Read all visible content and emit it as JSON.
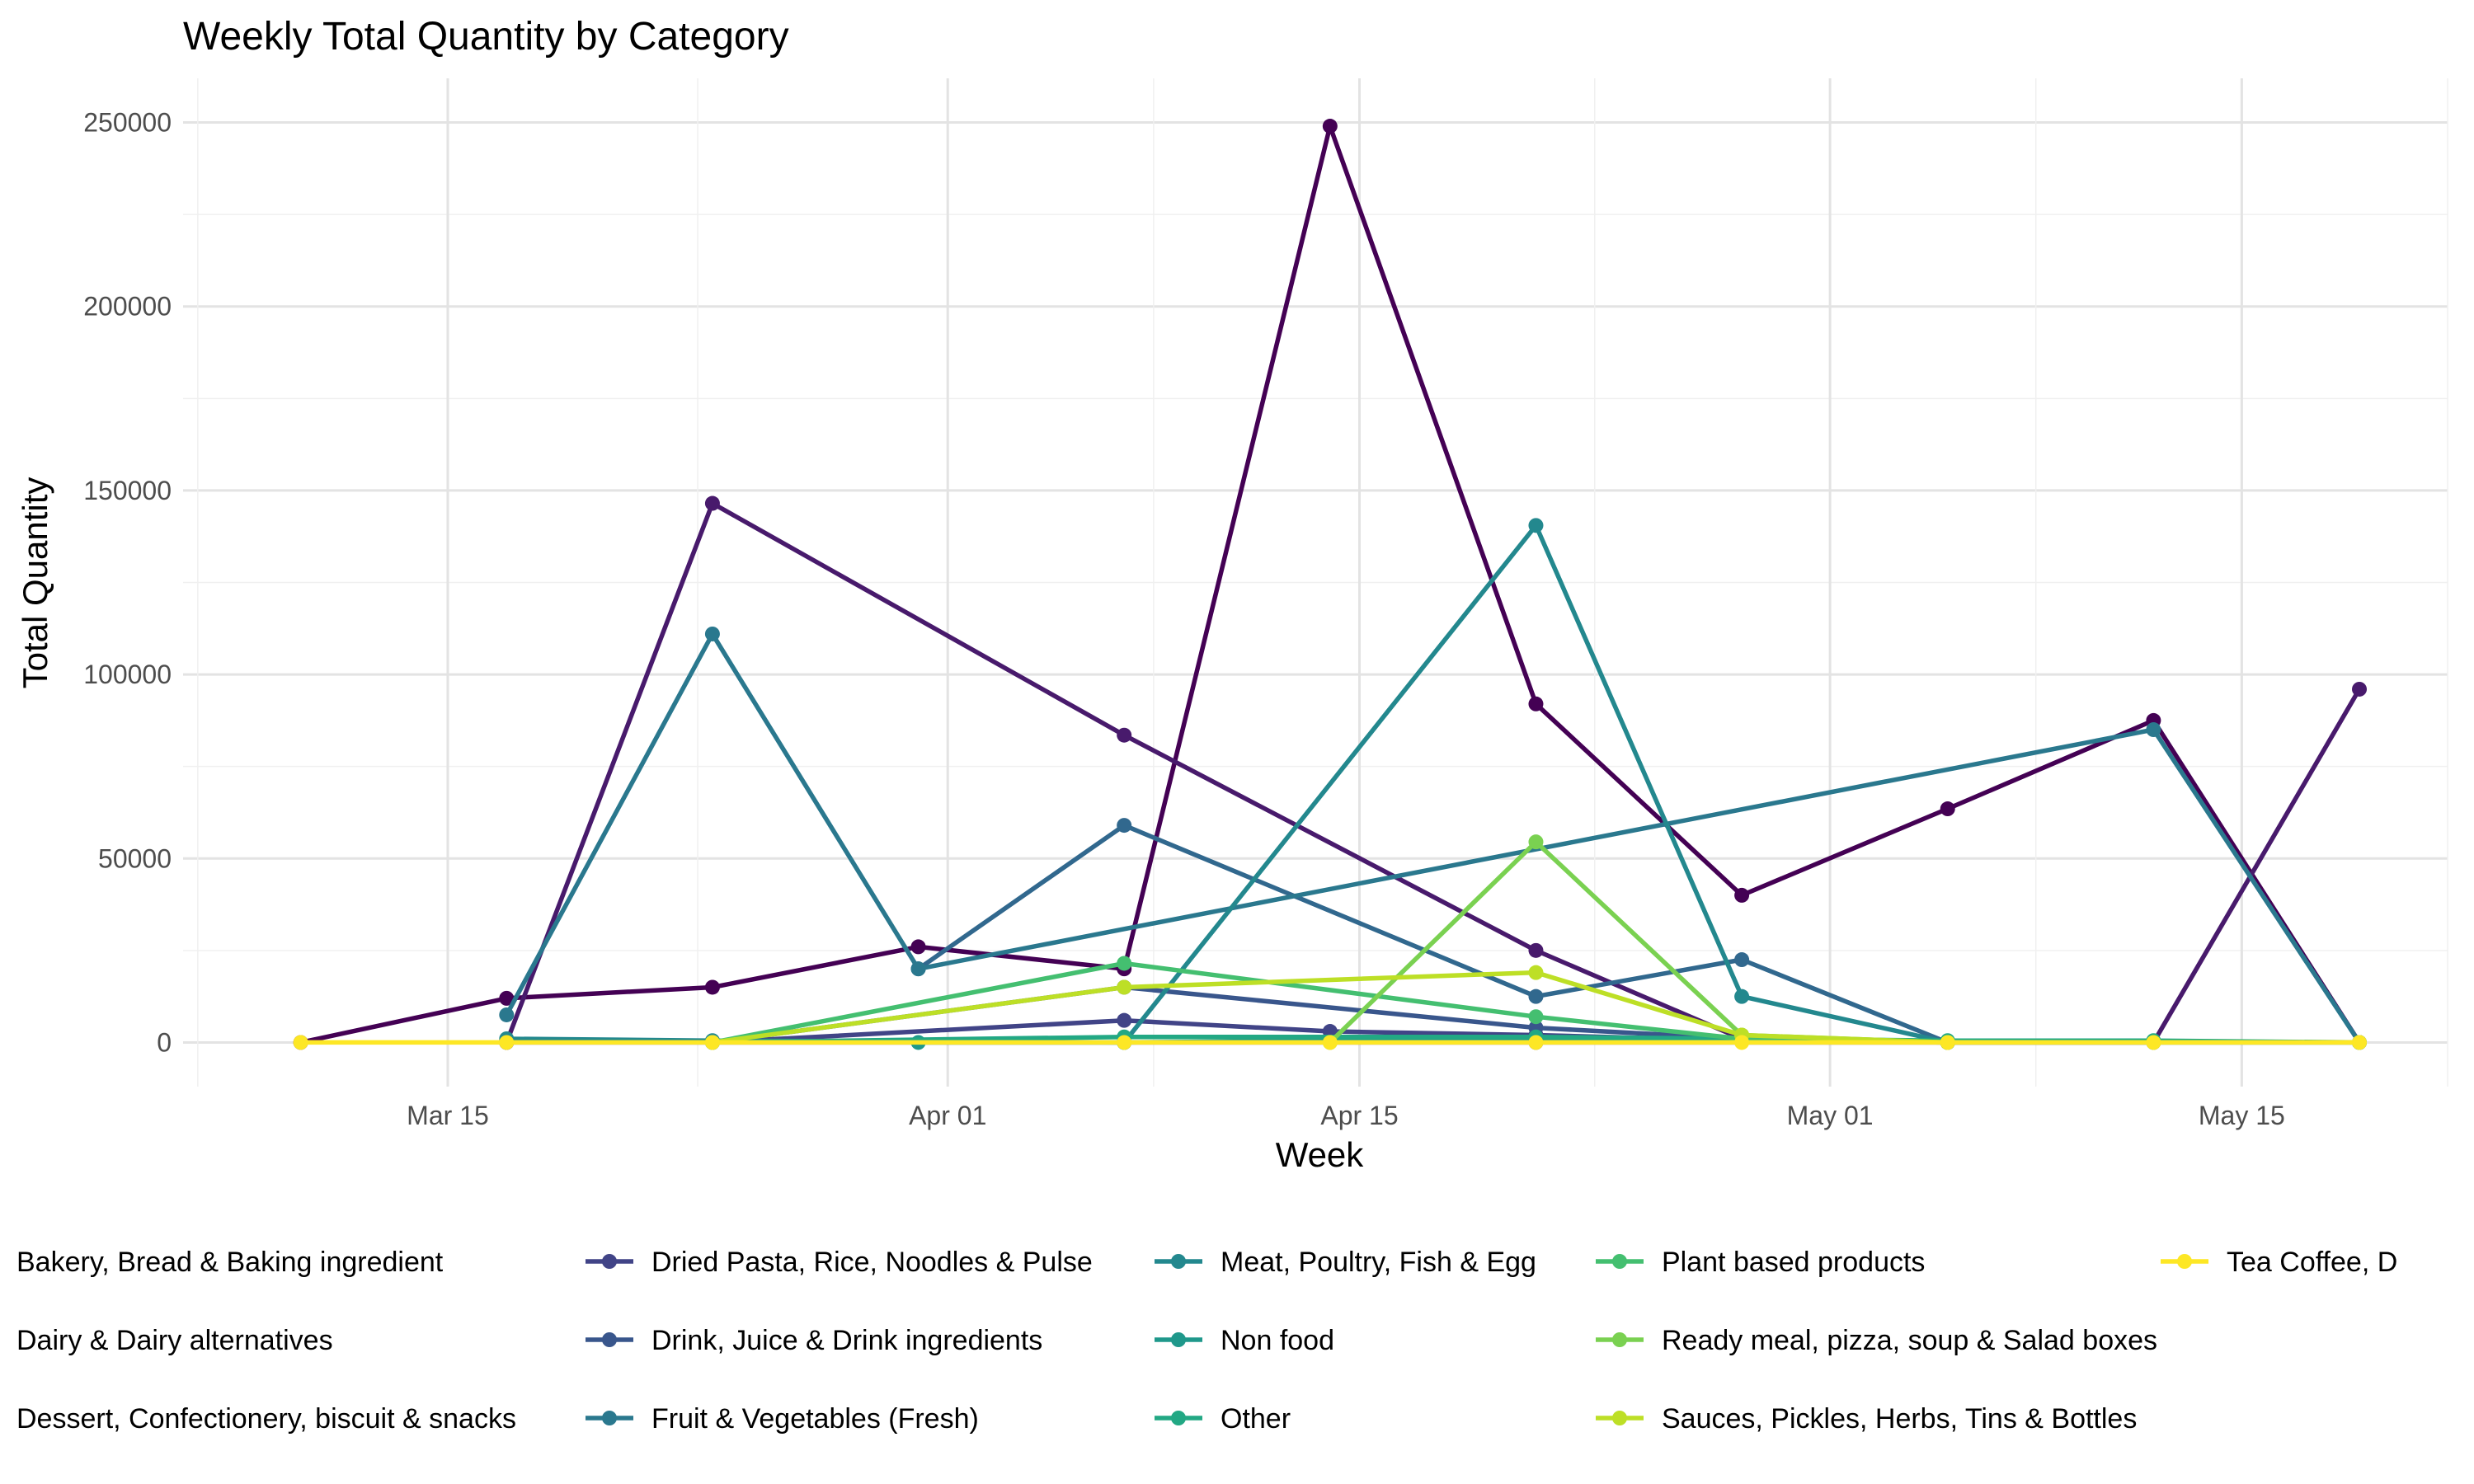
{
  "chart_data": {
    "type": "line",
    "title": "Weekly Total Quantity by Category",
    "xlabel": "Week",
    "ylabel": "Total Quantity",
    "x": [
      "2024-03-10",
      "2024-03-17",
      "2024-03-24",
      "2024-03-31",
      "2024-04-07",
      "2024-04-14",
      "2024-04-21",
      "2024-04-28",
      "2024-05-05",
      "2024-05-12",
      "2024-05-19"
    ],
    "x_ticks": [
      {
        "date": "2024-03-15",
        "label": "Mar 15"
      },
      {
        "date": "2024-04-01",
        "label": "Apr 01"
      },
      {
        "date": "2024-04-15",
        "label": "Apr 15"
      },
      {
        "date": "2024-05-01",
        "label": "May 01"
      },
      {
        "date": "2024-05-15",
        "label": "May 15"
      }
    ],
    "x_range": [
      "2024-03-06",
      "2024-05-22"
    ],
    "ylim": [
      -12000,
      262000
    ],
    "y_ticks": [
      0,
      50000,
      100000,
      150000,
      200000,
      250000
    ],
    "grid": true,
    "legend_position": "bottom",
    "series": [
      {
        "name": "Bakery, Bread & Baking ingredient",
        "color": "#440154",
        "points": [
          [
            "2024-03-10",
            0
          ],
          [
            "2024-03-17",
            12000
          ],
          [
            "2024-03-24",
            15000
          ],
          [
            "2024-03-31",
            26000
          ],
          [
            "2024-04-07",
            20000
          ],
          [
            "2024-04-14",
            249000
          ],
          [
            "2024-04-21",
            92000
          ],
          [
            "2024-04-28",
            40000
          ],
          [
            "2024-05-05",
            63500
          ],
          [
            "2024-05-12",
            87500
          ],
          [
            "2024-05-19",
            0
          ]
        ]
      },
      {
        "name": "Dairy & Dairy alternatives",
        "color": "#481a6c",
        "points": [
          [
            "2024-03-17",
            0
          ],
          [
            "2024-03-24",
            146500
          ],
          [
            "2024-04-07",
            83500
          ],
          [
            "2024-04-21",
            25000
          ],
          [
            "2024-04-28",
            1000
          ],
          [
            "2024-05-05",
            0
          ],
          [
            "2024-05-12",
            0
          ],
          [
            "2024-05-19",
            96000
          ]
        ]
      },
      {
        "name": "Dessert, Confectionery, biscuit & snacks",
        "color": "#472f7d",
        "points": [
          [
            "2024-03-17",
            0
          ],
          [
            "2024-03-24",
            0
          ],
          [
            "2024-04-07",
            0
          ],
          [
            "2024-04-21",
            0
          ],
          [
            "2024-05-19",
            0
          ]
        ]
      },
      {
        "name": "Dried Pasta, Rice, Noodles & Pulse",
        "color": "#414487",
        "points": [
          [
            "2024-03-24",
            0
          ],
          [
            "2024-04-07",
            6000
          ],
          [
            "2024-04-14",
            3000
          ],
          [
            "2024-04-21",
            2000
          ],
          [
            "2024-04-28",
            500
          ],
          [
            "2024-05-05",
            0
          ]
        ]
      },
      {
        "name": "Drink, Juice & Drink ingredients",
        "color": "#39568c",
        "points": [
          [
            "2024-03-24",
            0
          ],
          [
            "2024-04-07",
            15000
          ],
          [
            "2024-04-21",
            4000
          ],
          [
            "2024-04-28",
            1000
          ],
          [
            "2024-05-05",
            0
          ]
        ]
      },
      {
        "name": "Fruit & Vegetables (Fresh)",
        "color": "#31688e",
        "points": [
          [
            "2024-03-31",
            20000
          ],
          [
            "2024-04-07",
            59000
          ],
          [
            "2024-04-21",
            12500
          ],
          [
            "2024-04-28",
            22500
          ],
          [
            "2024-05-05",
            0
          ]
        ]
      },
      {
        "name": "Fruit & Vegetables (Fresh)",
        "color": "#2a788e",
        "points": [
          [
            "2024-03-17",
            7500
          ],
          [
            "2024-03-24",
            111000
          ],
          [
            "2024-03-31",
            20000
          ],
          [
            "2024-05-12",
            85000
          ],
          [
            "2024-05-19",
            0
          ]
        ]
      },
      {
        "name": "Meat, Poultry, Fish & Egg",
        "color": "#23888e",
        "points": [
          [
            "2024-03-17",
            1000
          ],
          [
            "2024-03-24",
            500
          ],
          [
            "2024-04-07",
            0
          ],
          [
            "2024-04-21",
            140500
          ],
          [
            "2024-04-28",
            12500
          ],
          [
            "2024-05-05",
            0
          ]
        ]
      },
      {
        "name": "Non food",
        "color": "#1f988b",
        "points": [
          [
            "2024-03-31",
            0
          ],
          [
            "2024-04-07",
            0
          ],
          [
            "2024-04-21",
            1000
          ],
          [
            "2024-05-05",
            0
          ]
        ]
      },
      {
        "name": "Other",
        "color": "#22a884",
        "points": [
          [
            "2024-03-24",
            0
          ],
          [
            "2024-04-07",
            1500
          ],
          [
            "2024-04-21",
            1500
          ],
          [
            "2024-05-05",
            500
          ],
          [
            "2024-05-12",
            500
          ],
          [
            "2024-05-19",
            0
          ]
        ]
      },
      {
        "name": "Plant based products",
        "color": "#44bf70",
        "points": [
          [
            "2024-03-24",
            0
          ],
          [
            "2024-04-07",
            21500
          ],
          [
            "2024-04-21",
            7000
          ],
          [
            "2024-04-28",
            1000
          ],
          [
            "2024-05-05",
            0
          ]
        ]
      },
      {
        "name": "Ready meal, pizza, soup & Salad boxes",
        "color": "#7ad151",
        "points": [
          [
            "2024-04-14",
            0
          ],
          [
            "2024-04-21",
            54500
          ],
          [
            "2024-04-28",
            2000
          ],
          [
            "2024-05-05",
            0
          ],
          [
            "2024-05-12",
            0
          ],
          [
            "2024-05-19",
            0
          ]
        ]
      },
      {
        "name": "Sauces, Pickles, Herbs, Tins & Bottles",
        "color": "#bddf26",
        "points": [
          [
            "2024-03-24",
            0
          ],
          [
            "2024-04-07",
            15000
          ],
          [
            "2024-04-21",
            19000
          ],
          [
            "2024-04-28",
            2000
          ],
          [
            "2024-05-05",
            0
          ]
        ]
      },
      {
        "name": "Tea Coffee, D",
        "color": "#fde725",
        "points": [
          [
            "2024-03-10",
            0
          ],
          [
            "2024-03-17",
            0
          ],
          [
            "2024-03-24",
            0
          ],
          [
            "2024-04-07",
            0
          ],
          [
            "2024-04-14",
            0
          ],
          [
            "2024-04-21",
            0
          ],
          [
            "2024-04-28",
            0
          ],
          [
            "2024-05-05",
            0
          ],
          [
            "2024-05-12",
            0
          ],
          [
            "2024-05-19",
            0
          ]
        ]
      }
    ],
    "legend": [
      {
        "label": "Bakery, Bread & Baking ingredient",
        "color": "#440154"
      },
      {
        "label": "Dairy & Dairy alternatives",
        "color": "#481a6c"
      },
      {
        "label": "Dessert, Confectionery, biscuit & snacks",
        "color": "#472f7d"
      },
      {
        "label": "Dried Pasta, Rice, Noodles & Pulse",
        "color": "#414487"
      },
      {
        "label": "Drink, Juice & Drink ingredients",
        "color": "#39568c"
      },
      {
        "label": "Fruit & Vegetables (Fresh)",
        "color": "#2a788e"
      },
      {
        "label": "Meat, Poultry, Fish & Egg",
        "color": "#23888e"
      },
      {
        "label": "Non food",
        "color": "#1f988b"
      },
      {
        "label": "Other",
        "color": "#22a884"
      },
      {
        "label": "Plant based products",
        "color": "#44bf70"
      },
      {
        "label": "Ready meal, pizza, soup & Salad boxes",
        "color": "#7ad151"
      },
      {
        "label": "Sauces, Pickles, Herbs, Tins & Bottles",
        "color": "#bddf26"
      },
      {
        "label": "Tea Coffee, D",
        "color": "#fde725"
      }
    ]
  }
}
